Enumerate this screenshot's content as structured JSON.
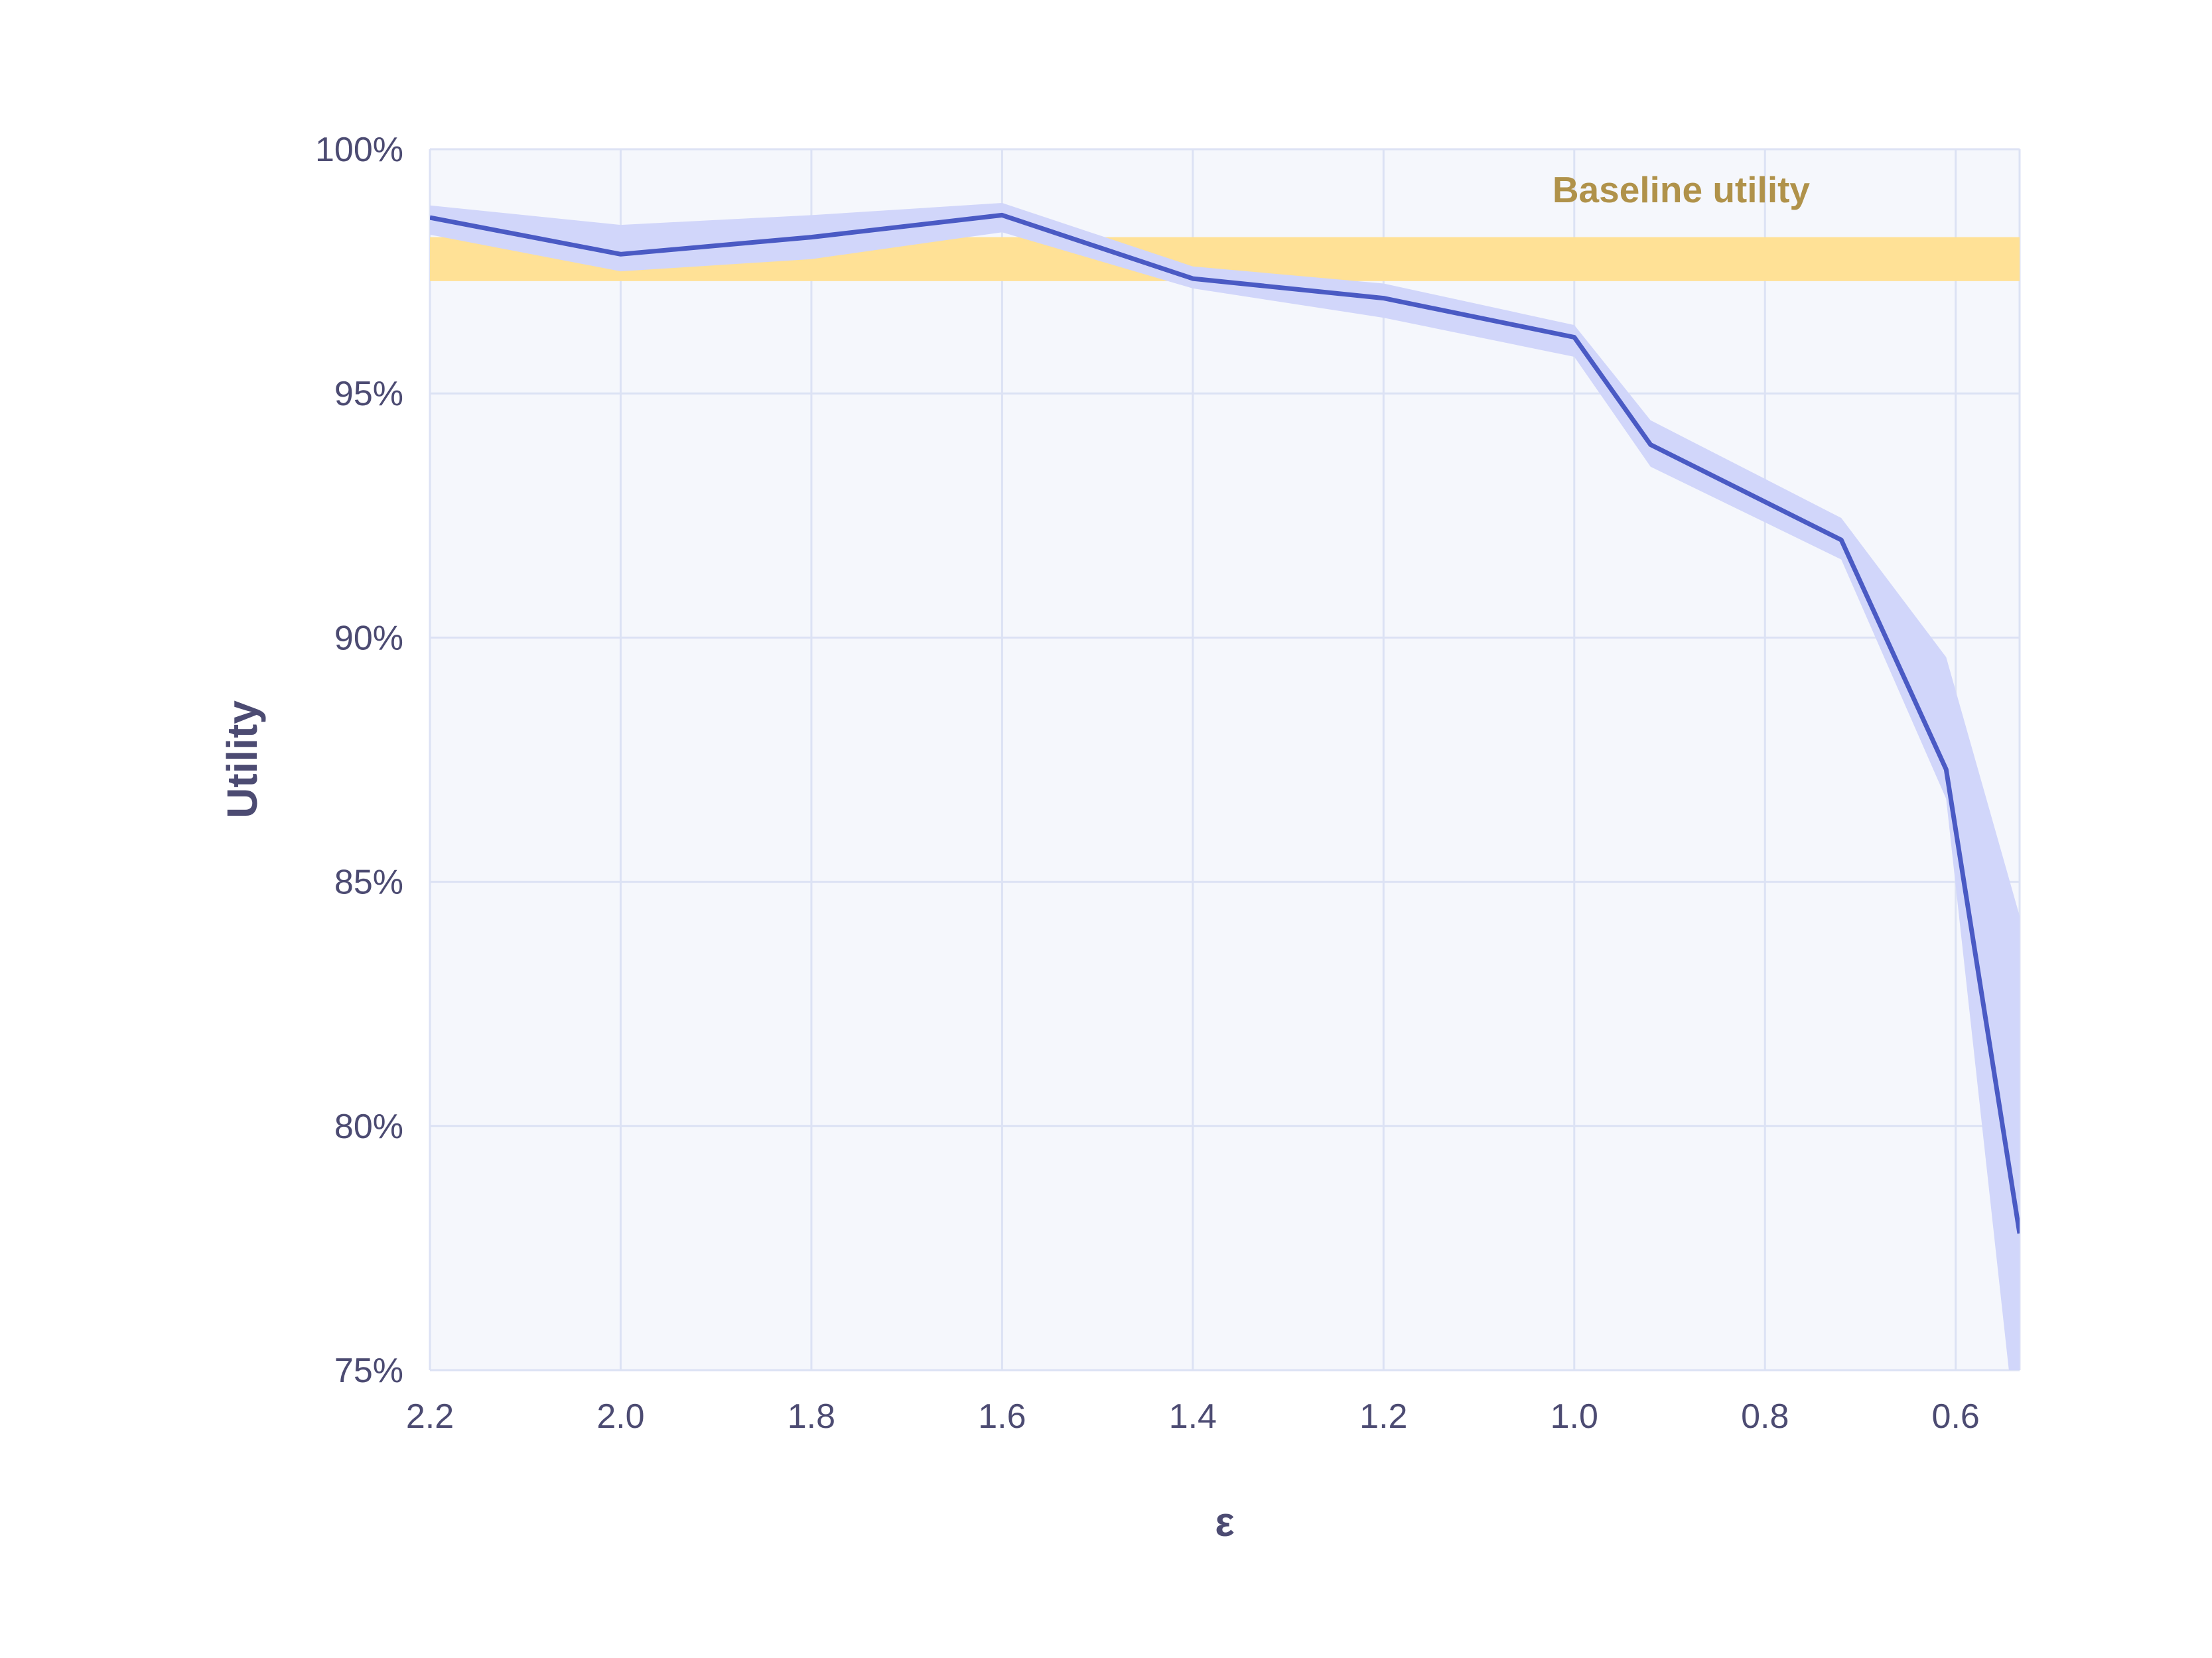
{
  "chart_data": {
    "type": "line",
    "xlabel": "ε",
    "ylabel": "Utility",
    "xlim": [
      2.2,
      0.533
    ],
    "x_reversed": true,
    "ylim": [
      75,
      100
    ],
    "x_ticks": [
      2.2,
      2.0,
      1.8,
      1.6,
      1.4,
      1.2,
      1.0,
      0.8,
      0.6
    ],
    "x_tick_labels": [
      "2.2",
      "2.0",
      "1.8",
      "1.6",
      "1.4",
      "1.2",
      "1.0",
      "0.8",
      "0.6"
    ],
    "y_ticks": [
      75,
      80,
      85,
      90,
      95,
      100
    ],
    "y_tick_labels": [
      "75%",
      "80%",
      "85%",
      "90%",
      "95%",
      "100%"
    ],
    "grid": true,
    "baseline": {
      "label": "Baseline utility",
      "low": 97.3,
      "high": 98.2,
      "color": "#FFE196",
      "label_color": "#B0924A"
    },
    "series": [
      {
        "x": [
          2.2,
          2.0,
          1.8,
          1.6,
          1.4,
          1.2,
          1.0,
          0.92,
          0.72,
          0.61,
          0.533
        ],
        "values": [
          98.6,
          97.85,
          98.2,
          98.65,
          97.35,
          96.95,
          96.15,
          93.95,
          92.0,
          87.3,
          77.8
        ],
        "band_low": [
          98.25,
          97.5,
          97.75,
          98.3,
          97.15,
          96.55,
          95.75,
          93.5,
          91.6,
          86.7,
          73.0
        ],
        "band_high": [
          98.85,
          98.45,
          98.65,
          98.9,
          97.6,
          97.25,
          96.4,
          94.45,
          92.45,
          89.6,
          84.3
        ],
        "color": "#4A5AC4",
        "band_color": "#D1D6FA"
      }
    ],
    "colors": {
      "plot_background": "#F5F7FC",
      "grid": "#DCE2F4",
      "axis_text": "#4C4B72"
    }
  }
}
